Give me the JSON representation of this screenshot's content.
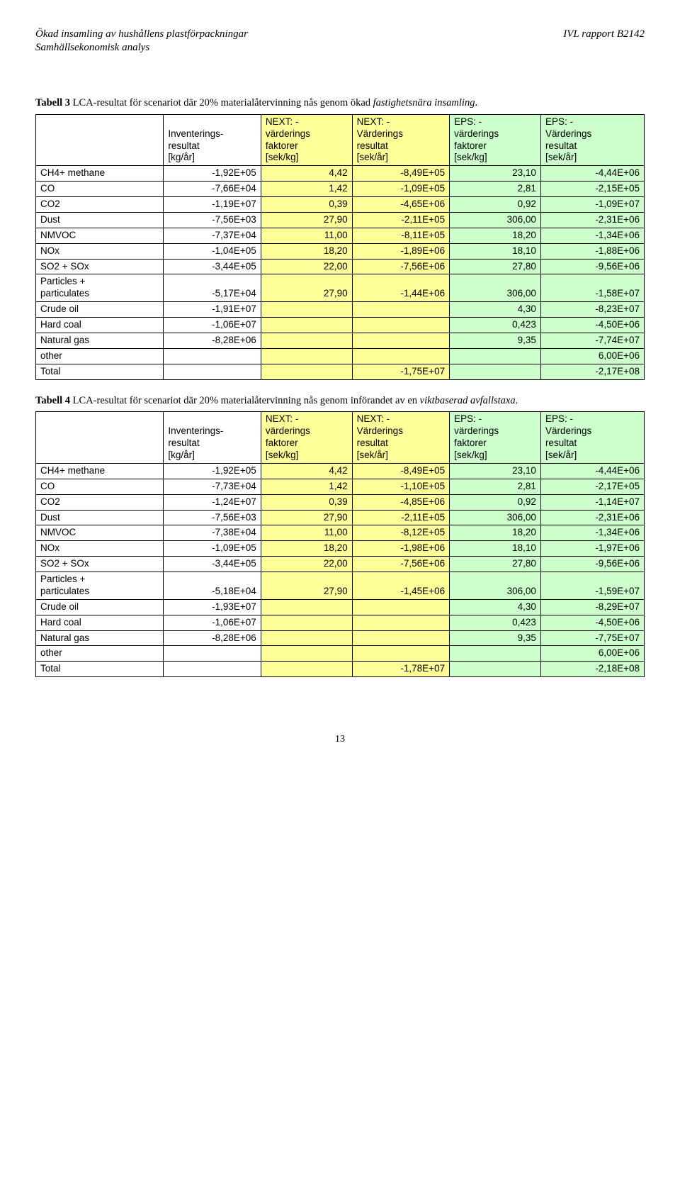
{
  "header": {
    "left_line1": "Ökad insamling av hushållens plastförpackningar",
    "left_line2": "Samhällsekonomisk analys",
    "right": "IVL rapport B2142"
  },
  "table1": {
    "caption_bold": "Tabell 3",
    "caption_plain": " LCA-resultat för scenariot där 20% materialåtervinning nås genom ökad ",
    "caption_ital": "fastighetsnära insamling",
    "caption_end": ".",
    "columns": {
      "c0": "",
      "c1": "Inventerings-resultat [kg/år]",
      "c2": "NEXT: - värderings faktorer [sek/kg]",
      "c3": "NEXT: - Värderings resultat [sek/år]",
      "c4": "EPS: - värderings faktorer [sek/kg]",
      "c5": "EPS: - Värderings resultat [sek/år]"
    },
    "rows": [
      {
        "label": "CH4+ methane",
        "inv": "-1,92E+05",
        "nf": "4,42",
        "nr": "-8,49E+05",
        "ef": "23,10",
        "er": "-4,44E+06"
      },
      {
        "label": "CO",
        "inv": "-7,66E+04",
        "nf": "1,42",
        "nr": "-1,09E+05",
        "ef": "2,81",
        "er": "-2,15E+05"
      },
      {
        "label": "CO2",
        "inv": "-1,19E+07",
        "nf": "0,39",
        "nr": "-4,65E+06",
        "ef": "0,92",
        "er": "-1,09E+07"
      },
      {
        "label": "Dust",
        "inv": "-7,56E+03",
        "nf": "27,90",
        "nr": "-2,11E+05",
        "ef": "306,00",
        "er": "-2,31E+06"
      },
      {
        "label": "NMVOC",
        "inv": "-7,37E+04",
        "nf": "11,00",
        "nr": "-8,11E+05",
        "ef": "18,20",
        "er": "-1,34E+06"
      },
      {
        "label": "NOx",
        "inv": "-1,04E+05",
        "nf": "18,20",
        "nr": "-1,89E+06",
        "ef": "18,10",
        "er": "-1,88E+06"
      },
      {
        "label": "SO2 + SOx",
        "inv": "-3,44E+05",
        "nf": "22,00",
        "nr": "-7,56E+06",
        "ef": "27,80",
        "er": "-9,56E+06"
      },
      {
        "label": "Particles + particulates",
        "inv": "-5,17E+04",
        "nf": "27,90",
        "nr": "-1,44E+06",
        "ef": "306,00",
        "er": "-1,58E+07"
      },
      {
        "label": "Crude oil",
        "inv": "-1,91E+07",
        "nf": "",
        "nr": "",
        "ef": "4,30",
        "er": "-8,23E+07"
      },
      {
        "label": "Hard coal",
        "inv": "-1,06E+07",
        "nf": "",
        "nr": "",
        "ef": "0,423",
        "er": "-4,50E+06"
      },
      {
        "label": "Natural gas",
        "inv": "-8,28E+06",
        "nf": "",
        "nr": "",
        "ef": "9,35",
        "er": "-7,74E+07"
      },
      {
        "label": "other",
        "inv": "",
        "nf": "",
        "nr": "",
        "ef": "",
        "er": "6,00E+06"
      },
      {
        "label": "Total",
        "inv": "",
        "nf": "",
        "nr": "-1,75E+07",
        "ef": "",
        "er": "-2,17E+08"
      }
    ]
  },
  "table2": {
    "caption_bold": "Tabell 4",
    "caption_plain": " LCA-resultat för scenariot där 20% materialåtervinning nås genom införandet av en ",
    "caption_ital": "viktbaserad avfallstaxa",
    "caption_end": ".",
    "columns": {
      "c0": "",
      "c1": "Inventerings-resultat [kg/år]",
      "c2": "NEXT: - värderings faktorer [sek/kg]",
      "c3": "NEXT: - Värderings resultat [sek/år]",
      "c4": "EPS: - värderings faktorer [sek/kg]",
      "c5": "EPS: - Värderings resultat [sek/år]"
    },
    "rows": [
      {
        "label": "CH4+ methane",
        "inv": "-1,92E+05",
        "nf": "4,42",
        "nr": "-8,49E+05",
        "ef": "23,10",
        "er": "-4,44E+06"
      },
      {
        "label": "CO",
        "inv": "-7,73E+04",
        "nf": "1,42",
        "nr": "-1,10E+05",
        "ef": "2,81",
        "er": "-2,17E+05"
      },
      {
        "label": "CO2",
        "inv": "-1,24E+07",
        "nf": "0,39",
        "nr": "-4,85E+06",
        "ef": "0,92",
        "er": "-1,14E+07"
      },
      {
        "label": "Dust",
        "inv": "-7,56E+03",
        "nf": "27,90",
        "nr": "-2,11E+05",
        "ef": "306,00",
        "er": "-2,31E+06"
      },
      {
        "label": "NMVOC",
        "inv": "-7,38E+04",
        "nf": "11,00",
        "nr": "-8,12E+05",
        "ef": "18,20",
        "er": "-1,34E+06"
      },
      {
        "label": "NOx",
        "inv": "-1,09E+05",
        "nf": "18,20",
        "nr": "-1,98E+06",
        "ef": "18,10",
        "er": "-1,97E+06"
      },
      {
        "label": "SO2 + SOx",
        "inv": "-3,44E+05",
        "nf": "22,00",
        "nr": "-7,56E+06",
        "ef": "27,80",
        "er": "-9,56E+06"
      },
      {
        "label": "Particles + particulates",
        "inv": "-5,18E+04",
        "nf": "27,90",
        "nr": "-1,45E+06",
        "ef": "306,00",
        "er": "-1,59E+07"
      },
      {
        "label": "Crude oil",
        "inv": "-1,93E+07",
        "nf": "",
        "nr": "",
        "ef": "4,30",
        "er": "-8,29E+07"
      },
      {
        "label": "Hard coal",
        "inv": "-1,06E+07",
        "nf": "",
        "nr": "",
        "ef": "0,423",
        "er": "-4,50E+06"
      },
      {
        "label": "Natural gas",
        "inv": "-8,28E+06",
        "nf": "",
        "nr": "",
        "ef": "9,35",
        "er": "-7,75E+07"
      },
      {
        "label": "other",
        "inv": "",
        "nf": "",
        "nr": "",
        "ef": "",
        "er": "6,00E+06"
      },
      {
        "label": "Total",
        "inv": "",
        "nf": "",
        "nr": "-1,78E+07",
        "ef": "",
        "er": "-2,18E+08"
      }
    ]
  },
  "page_number": "13",
  "colors": {
    "next_bg": "#ffff99",
    "eps_bg": "#ccffcc",
    "border": "#000000"
  },
  "col_widths_pct": [
    21,
    16,
    15,
    16,
    15,
    17
  ]
}
